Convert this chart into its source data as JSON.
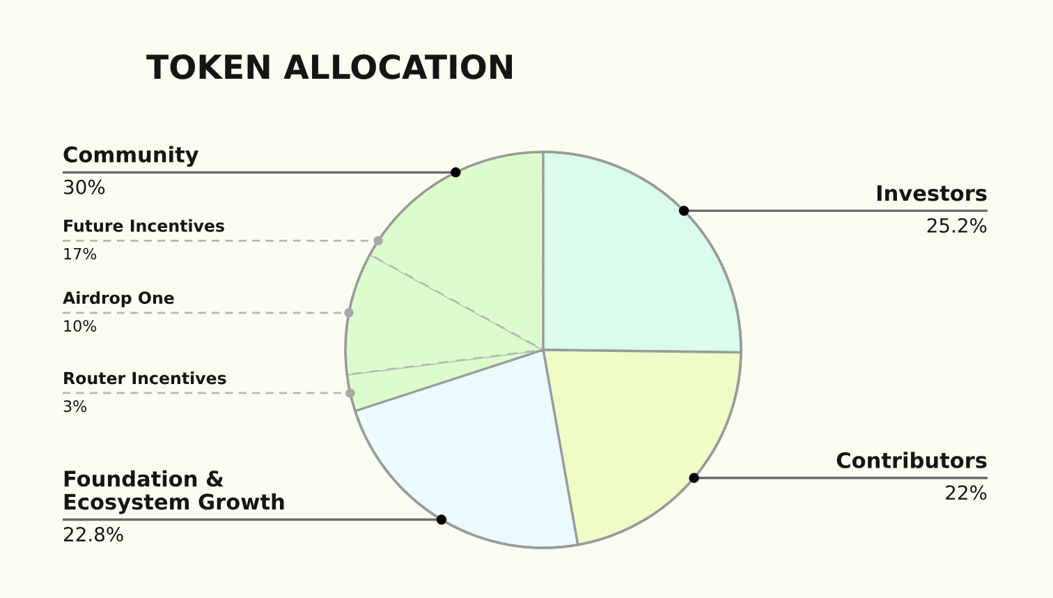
{
  "chart_data": {
    "type": "pie",
    "title": "TOKEN ALLOCATION",
    "categories": [
      "Investors",
      "Contributors",
      "Foundation &\nEcosystem Growth",
      "Router Incentives",
      "Airdrop One",
      "Future Incentives"
    ],
    "values": [
      25.2,
      22,
      22.8,
      3,
      10,
      17
    ],
    "colors": [
      "#d9fcec",
      "#effcc6",
      "#ebfaff",
      "#ddfccd",
      "#ddfccd",
      "#ddfccd"
    ],
    "value_labels": [
      "25.2%",
      "22%",
      "22.8%",
      "3%",
      "10%",
      "17%"
    ],
    "annotations": [
      "Community",
      "30%"
    ]
  }
}
